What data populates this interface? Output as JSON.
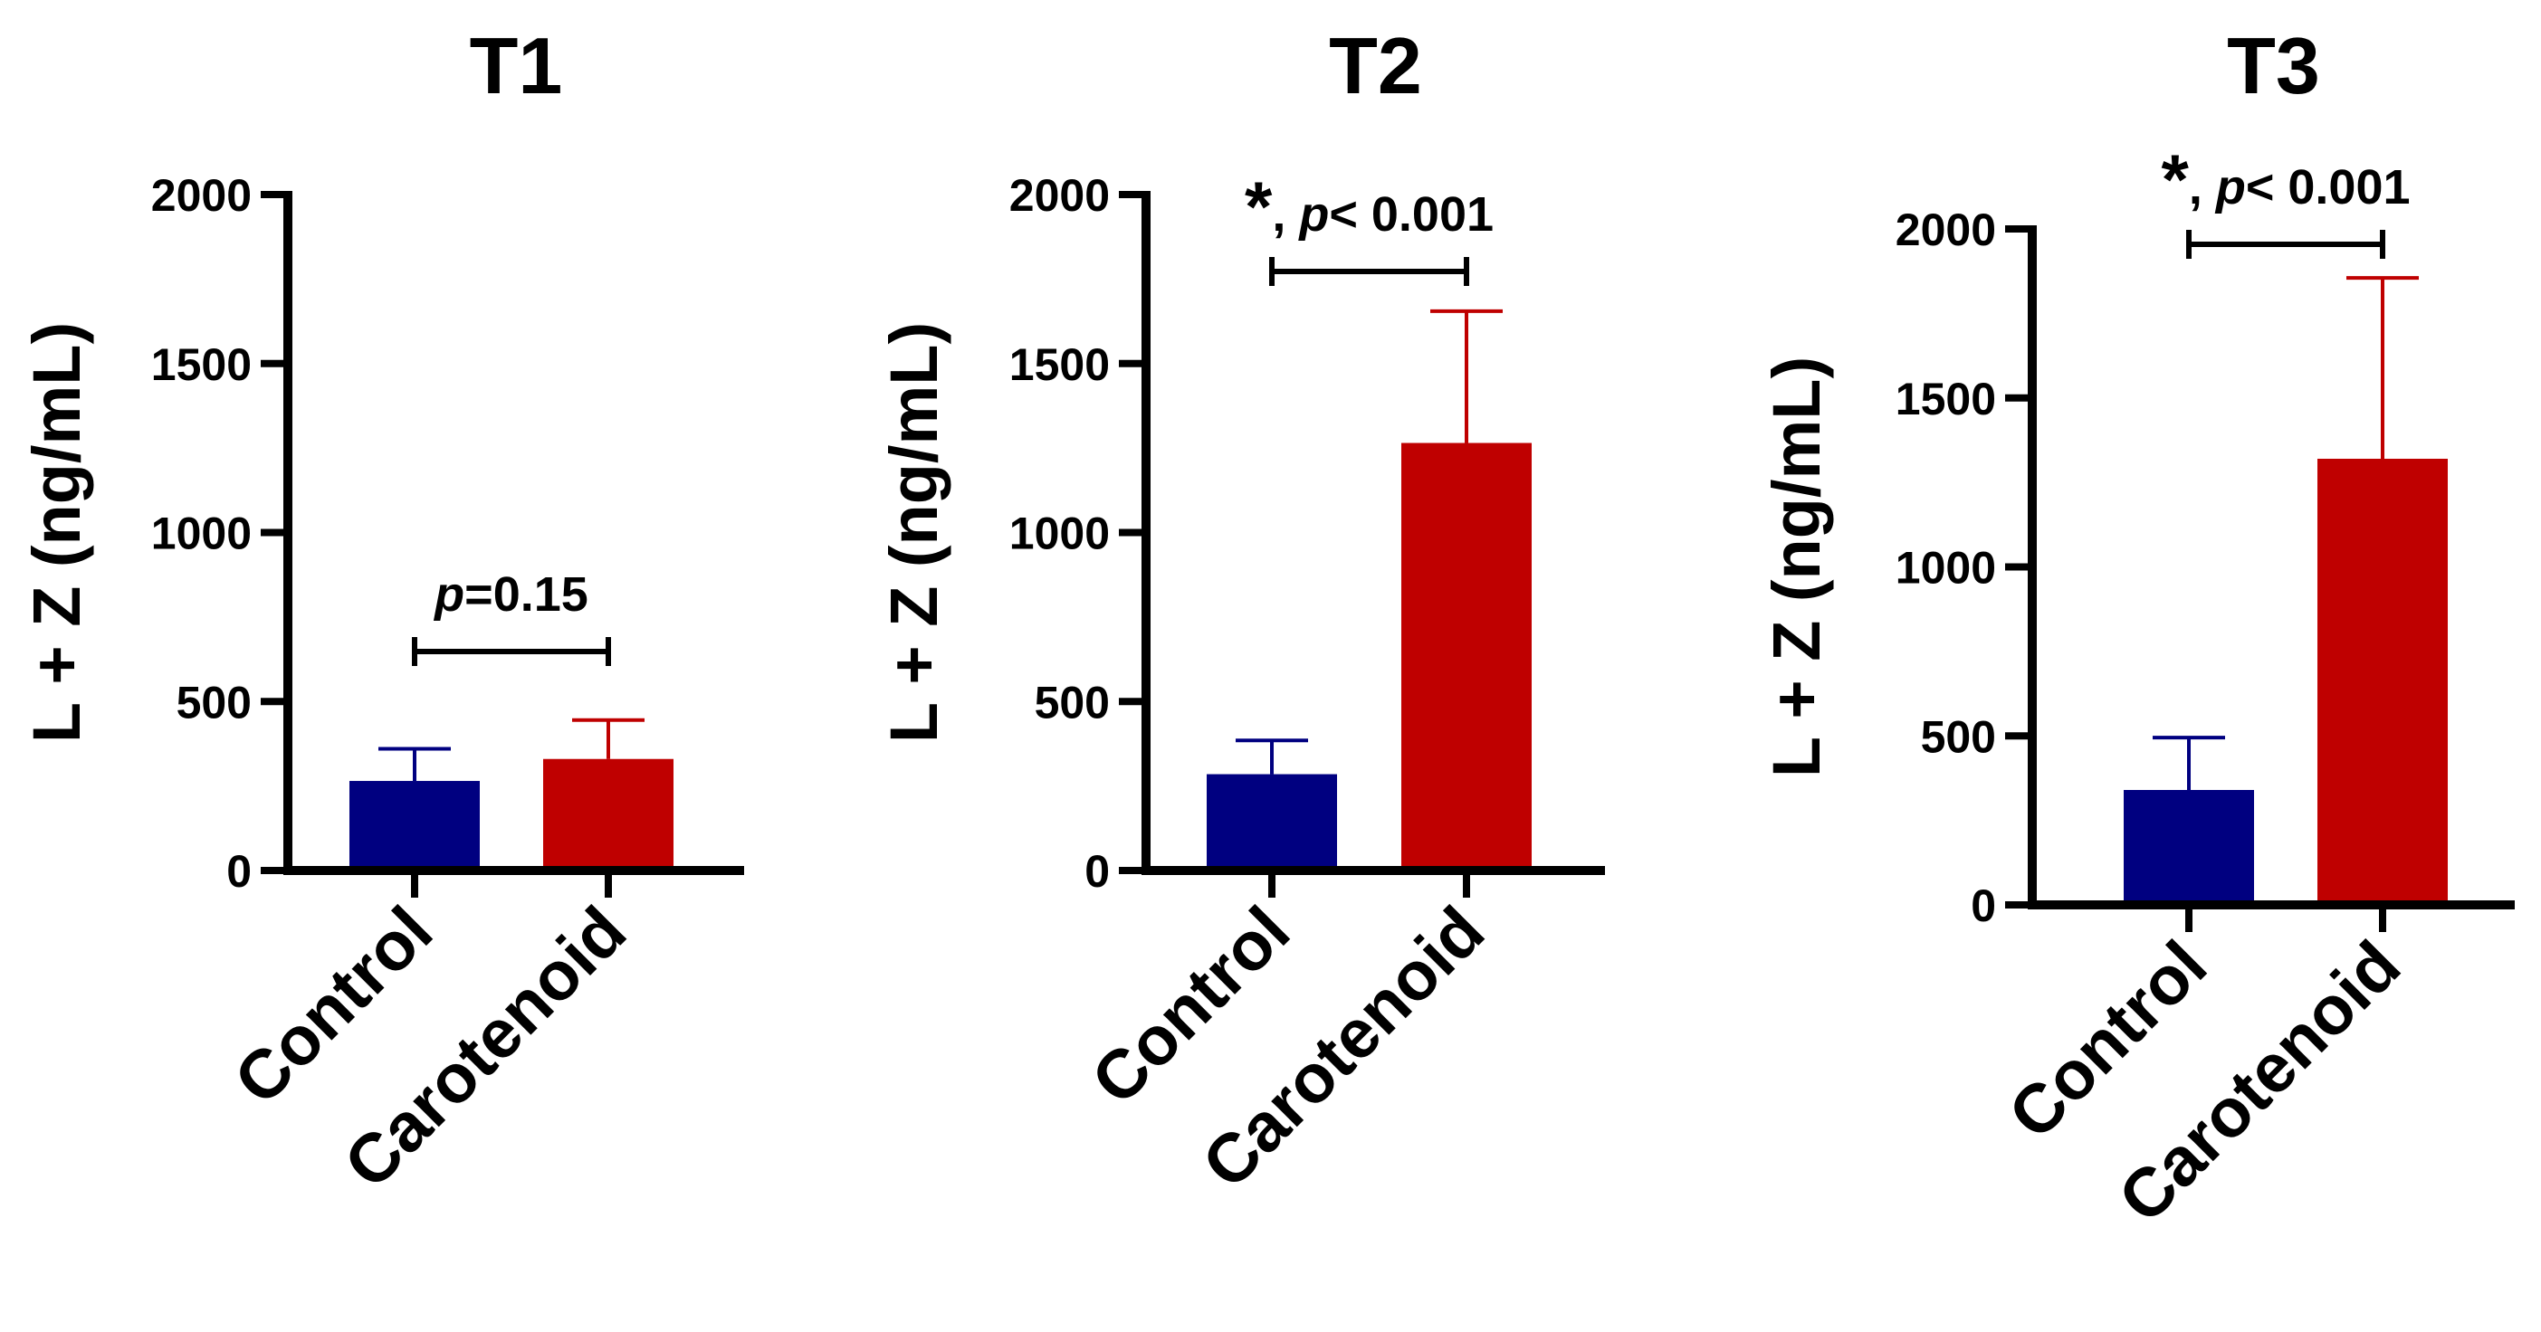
{
  "colors": {
    "control": "#000080",
    "carotenoid": "#BF0000",
    "axis": "#000000"
  },
  "chart_data": [
    {
      "type": "bar",
      "title": "T1",
      "ylabel": "L + Z (ng/mL)",
      "xlabel": "",
      "categories": [
        "Control",
        "Carotenoid"
      ],
      "values": [
        265,
        330
      ],
      "errors": [
        95,
        115
      ],
      "ylim": [
        0,
        2000
      ],
      "yticks": [
        "0",
        "500",
        "1000",
        "1500",
        "2000"
      ],
      "annotation": {
        "star": "",
        "italic": "p",
        "rest": "=0.15"
      }
    },
    {
      "type": "bar",
      "title": "T2",
      "ylabel": "L + Z (ng/mL)",
      "xlabel": "",
      "categories": [
        "Control",
        "Carotenoid"
      ],
      "values": [
        285,
        1265
      ],
      "errors": [
        100,
        390
      ],
      "ylim": [
        0,
        2000
      ],
      "yticks": [
        "0",
        "500",
        "1000",
        "1500",
        "2000"
      ],
      "annotation": {
        "star": "*",
        "italic": "p",
        "rest": "< 0.001"
      }
    },
    {
      "type": "bar",
      "title": "T3",
      "ylabel": "L + Z (ng/mL)",
      "xlabel": "",
      "categories": [
        "Control",
        "Carotenoid"
      ],
      "values": [
        340,
        1320
      ],
      "errors": [
        155,
        535
      ],
      "ylim": [
        0,
        2000
      ],
      "yticks": [
        "0",
        "500",
        "1000",
        "1500",
        "2000"
      ],
      "annotation": {
        "star": "*",
        "italic": "p",
        "rest": "< 0.001"
      }
    }
  ]
}
